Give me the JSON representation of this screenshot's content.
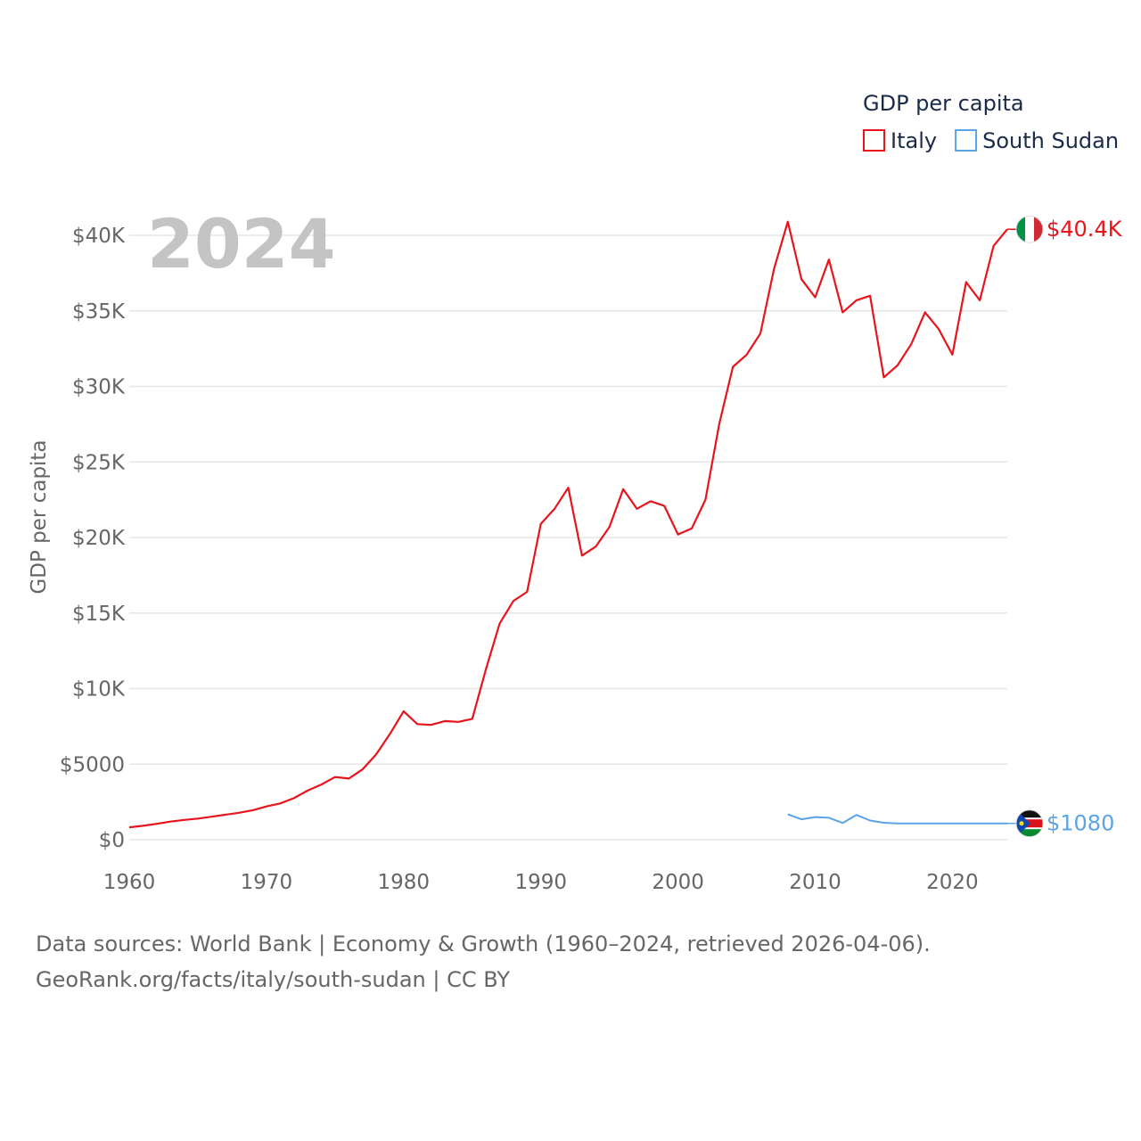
{
  "chart_data": {
    "type": "line",
    "year_label": "2024",
    "legend_title": "GDP per capita",
    "ylabel": "GDP per capita",
    "ylim": [
      0,
      42000
    ],
    "xlim": [
      1960,
      2024
    ],
    "x_ticks": [
      1960,
      1970,
      1980,
      1990,
      2000,
      2010,
      2020
    ],
    "y_ticks": [
      {
        "value": 0,
        "label": "$0"
      },
      {
        "value": 5000,
        "label": "$5000"
      },
      {
        "value": 10000,
        "label": "$10K"
      },
      {
        "value": 15000,
        "label": "$15K"
      },
      {
        "value": 20000,
        "label": "$20K"
      },
      {
        "value": 25000,
        "label": "$25K"
      },
      {
        "value": 30000,
        "label": "$30K"
      },
      {
        "value": 35000,
        "label": "$35K"
      },
      {
        "value": 40000,
        "label": "$40K"
      }
    ],
    "series": [
      {
        "name": "Italy",
        "color": "#e8141c",
        "end_label": "$40.4K",
        "flag": "italy-flag",
        "x": [
          1960,
          1961,
          1962,
          1963,
          1964,
          1965,
          1966,
          1967,
          1968,
          1969,
          1970,
          1971,
          1972,
          1973,
          1974,
          1975,
          1976,
          1977,
          1978,
          1979,
          1980,
          1981,
          1982,
          1983,
          1984,
          1985,
          1986,
          1987,
          1988,
          1989,
          1990,
          1991,
          1992,
          1993,
          1994,
          1995,
          1996,
          1997,
          1998,
          1999,
          2000,
          2001,
          2002,
          2003,
          2004,
          2005,
          2006,
          2007,
          2008,
          2009,
          2010,
          2011,
          2012,
          2013,
          2014,
          2015,
          2016,
          2017,
          2018,
          2019,
          2020,
          2021,
          2022,
          2023,
          2024
        ],
        "values": [
          820,
          920,
          1050,
          1200,
          1310,
          1400,
          1520,
          1650,
          1780,
          1950,
          2200,
          2400,
          2750,
          3250,
          3650,
          4150,
          4050,
          4650,
          5650,
          7000,
          8500,
          7650,
          7600,
          7850,
          7800,
          8000,
          11300,
          14300,
          15800,
          16400,
          20900,
          21900,
          23300,
          18800,
          19400,
          20700,
          23200,
          21900,
          22400,
          22100,
          20200,
          20600,
          22500,
          27500,
          31300,
          32100,
          33500,
          37800,
          40900,
          37100,
          35900,
          38400,
          34900,
          35700,
          36000,
          30600,
          31400,
          32800,
          34900,
          33800,
          32100,
          36900,
          35700,
          39300,
          40400
        ]
      },
      {
        "name": "South Sudan",
        "color": "#5ba3e6",
        "end_label": "$1080",
        "flag": "south-sudan-flag",
        "x": [
          2008,
          2009,
          2010,
          2011,
          2012,
          2013,
          2014,
          2015,
          2016,
          2017,
          2018,
          2019,
          2020,
          2021,
          2022,
          2023,
          2024
        ],
        "values": [
          1680,
          1350,
          1500,
          1450,
          1110,
          1640,
          1270,
          1120,
          1080,
          1080,
          1080,
          1080,
          1080,
          1080,
          1080,
          1080,
          1080
        ]
      }
    ]
  },
  "footer": {
    "line1": "Data sources: World Bank | Economy & Growth (1960–2024, retrieved 2026-04-06).",
    "line2": "GeoRank.org/facts/italy/south-sudan | CC BY"
  }
}
